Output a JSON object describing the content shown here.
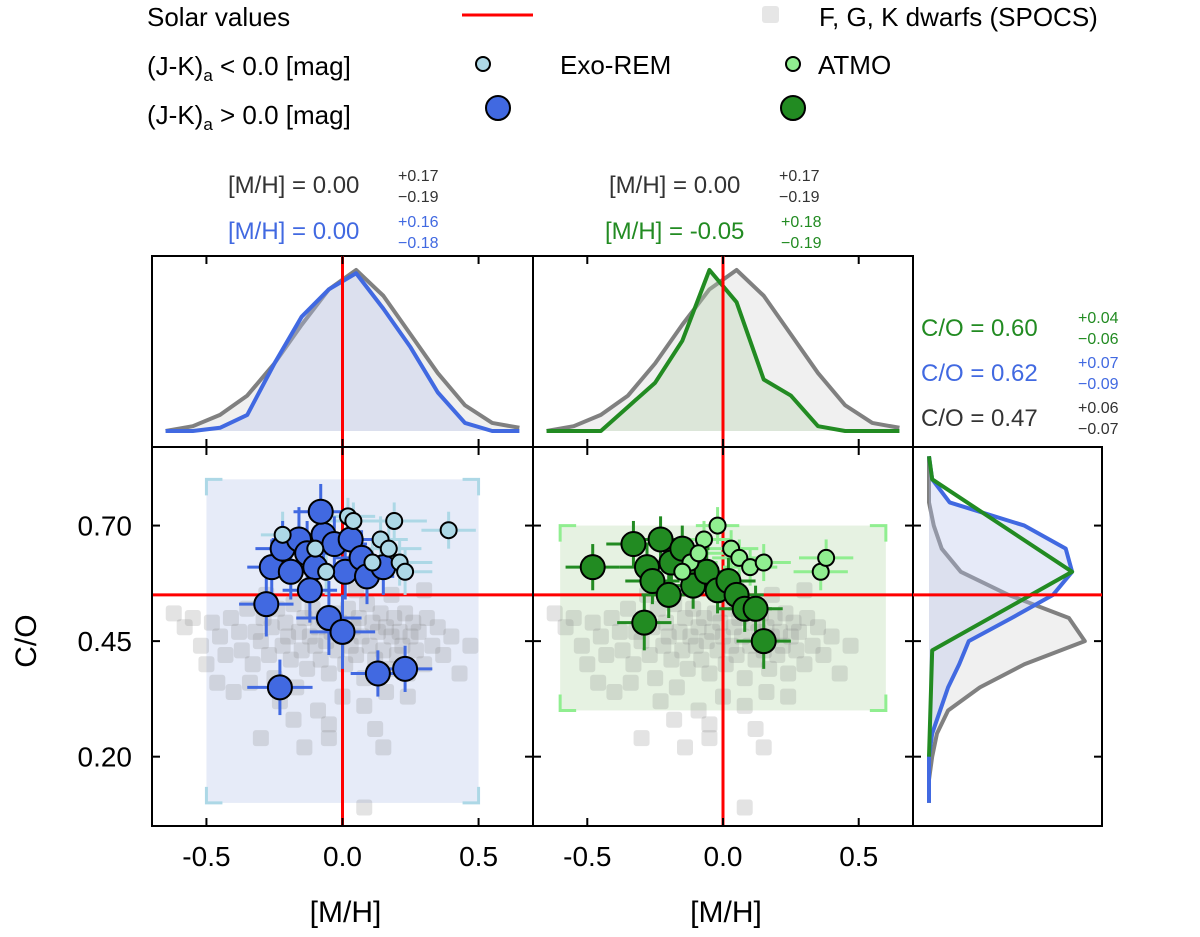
{
  "legend": {
    "solar_label": "Solar values",
    "stars_label": "F, G, K dwarfs (SPOCS)",
    "row_low": "(J-K)",
    "row_low_sub": "a",
    "row_low_rest": " < 0.0 [mag]",
    "row_high": "(J-K)",
    "row_high_sub": "a",
    "row_high_rest": " > 0.0 [mag]",
    "exorem_label": "Exo-REM",
    "atmo_label": "ATMO"
  },
  "annotations": {
    "left_stars": {
      "prefix": "[M/H] = ",
      "value": "0.00",
      "sup": "+0.17",
      "sub": "−0.19"
    },
    "left_exorem": {
      "prefix": "[M/H] = ",
      "value": "0.00",
      "sup": "+0.16",
      "sub": "−0.18"
    },
    "mid_stars": {
      "prefix": "[M/H] = ",
      "value": "0.00",
      "sup": "+0.17",
      "sub": "−0.19"
    },
    "mid_atmo": {
      "prefix": "[M/H] = ",
      "value": "-0.05",
      "sup": "+0.18",
      "sub": "−0.19"
    },
    "co_atmo": {
      "prefix": "C/O = ",
      "value": "0.60",
      "sup": "+0.04",
      "sub": "−0.06"
    },
    "co_exorem": {
      "prefix": "C/O = ",
      "value": "0.62",
      "sup": "+0.07",
      "sub": "−0.09"
    },
    "co_stars": {
      "prefix": "C/O = ",
      "value": "0.47",
      "sup": "+0.06",
      "sub": "−0.07"
    }
  },
  "chart_data": {
    "type": "scatter",
    "colors": {
      "exorem_dark": "#4169e1",
      "exorem_light": "#add8e6",
      "exorem_fill": "#e6ebf8",
      "atmo_dark": "#228b22",
      "atmo_light": "#90ee90",
      "atmo_fill": "#e6f2e2",
      "stars": "#808080",
      "solar": "#ff0000"
    },
    "solar": {
      "mh": 0.0,
      "co": 0.55
    },
    "xlabel": "[M/H]",
    "ylabel": "C/O",
    "xlim": [
      -0.7,
      0.7
    ],
    "ylim": [
      0.05,
      0.87
    ],
    "xticks": [
      -0.5,
      0.0,
      0.5
    ],
    "xtick_labels": [
      "-0.5",
      "0.0",
      "0.5"
    ],
    "yticks": [
      0.2,
      0.45,
      0.7
    ],
    "ytick_labels": [
      "0.20",
      "0.45",
      "0.70"
    ],
    "grid": false,
    "legend_position": "top",
    "grid_boxes": {
      "exorem": {
        "mh": [
          -0.5,
          0.5
        ],
        "co": [
          0.1,
          0.8
        ]
      },
      "atmo": {
        "mh": [
          -0.6,
          0.6
        ],
        "co": [
          0.3,
          0.7
        ]
      }
    },
    "mh_histograms": {
      "bins": [
        -0.65,
        -0.55,
        -0.45,
        -0.35,
        -0.25,
        -0.15,
        -0.05,
        0.05,
        0.15,
        0.25,
        0.35,
        0.45,
        0.55,
        0.65
      ],
      "stars": [
        0.0,
        0.03,
        0.1,
        0.22,
        0.42,
        0.66,
        0.88,
        1.0,
        0.84,
        0.6,
        0.36,
        0.16,
        0.05,
        0.02
      ],
      "exorem": [
        0.0,
        0.0,
        0.02,
        0.1,
        0.42,
        0.71,
        0.88,
        0.98,
        0.76,
        0.52,
        0.24,
        0.05,
        0.0,
        0.0
      ],
      "atmo": [
        0.0,
        0.0,
        0.0,
        0.15,
        0.3,
        0.56,
        1.0,
        0.8,
        0.32,
        0.22,
        0.03,
        0.0,
        0.0,
        0.0
      ]
    },
    "co_histograms": {
      "bins": [
        0.1,
        0.15,
        0.2,
        0.25,
        0.3,
        0.35,
        0.4,
        0.45,
        0.5,
        0.55,
        0.6,
        0.65,
        0.7,
        0.75,
        0.8,
        0.85
      ],
      "stars": [
        0.0,
        0.0,
        0.02,
        0.05,
        0.12,
        0.32,
        0.6,
        0.98,
        0.88,
        0.5,
        0.2,
        0.08,
        0.03,
        0.0,
        0.0,
        0.0
      ],
      "exorem": [
        0.0,
        0.0,
        0.0,
        0.02,
        0.07,
        0.12,
        0.19,
        0.25,
        0.52,
        0.78,
        0.9,
        0.86,
        0.6,
        0.13,
        0.02,
        0.0
      ],
      "atmo": [
        0.0,
        0.0,
        0.0,
        0.0,
        0.0,
        0.0,
        0.0,
        0.0,
        0.0,
        0.0,
        0.9,
        0.0,
        0.0,
        0.0,
        0.0,
        0.0
      ]
    },
    "stars": [
      [
        -0.62,
        0.51
      ],
      [
        -0.58,
        0.48
      ],
      [
        -0.55,
        0.5
      ],
      [
        -0.52,
        0.44
      ],
      [
        -0.5,
        0.4
      ],
      [
        -0.48,
        0.49
      ],
      [
        -0.46,
        0.36
      ],
      [
        -0.45,
        0.46
      ],
      [
        -0.43,
        0.42
      ],
      [
        -0.41,
        0.5
      ],
      [
        -0.4,
        0.34
      ],
      [
        -0.38,
        0.47
      ],
      [
        -0.37,
        0.43
      ],
      [
        -0.35,
        0.52
      ],
      [
        -0.33,
        0.4
      ],
      [
        -0.32,
        0.47
      ],
      [
        -0.3,
        0.45
      ],
      [
        -0.29,
        0.5
      ],
      [
        -0.27,
        0.42
      ],
      [
        -0.26,
        0.48
      ],
      [
        -0.25,
        0.37
      ],
      [
        -0.24,
        0.52
      ],
      [
        -0.22,
        0.44
      ],
      [
        -0.21,
        0.49
      ],
      [
        -0.2,
        0.46
      ],
      [
        -0.19,
        0.41
      ],
      [
        -0.18,
        0.53
      ],
      [
        -0.16,
        0.47
      ],
      [
        -0.15,
        0.43
      ],
      [
        -0.14,
        0.5
      ],
      [
        -0.13,
        0.39
      ],
      [
        -0.12,
        0.46
      ],
      [
        -0.11,
        0.52
      ],
      [
        -0.1,
        0.44
      ],
      [
        -0.09,
        0.48
      ],
      [
        -0.08,
        0.41
      ],
      [
        -0.07,
        0.5
      ],
      [
        -0.06,
        0.45
      ],
      [
        -0.05,
        0.38
      ],
      [
        -0.04,
        0.47
      ],
      [
        -0.03,
        0.51
      ],
      [
        -0.02,
        0.43
      ],
      [
        -0.01,
        0.49
      ],
      [
        0.0,
        0.46
      ],
      [
        0.01,
        0.4
      ],
      [
        0.02,
        0.52
      ],
      [
        0.03,
        0.44
      ],
      [
        0.04,
        0.48
      ],
      [
        0.05,
        0.42
      ],
      [
        0.06,
        0.5
      ],
      [
        0.07,
        0.46
      ],
      [
        0.08,
        0.37
      ],
      [
        0.09,
        0.53
      ],
      [
        0.1,
        0.44
      ],
      [
        0.11,
        0.49
      ],
      [
        0.12,
        0.41
      ],
      [
        0.13,
        0.47
      ],
      [
        0.14,
        0.51
      ],
      [
        0.15,
        0.43
      ],
      [
        0.16,
        0.48
      ],
      [
        0.17,
        0.39
      ],
      [
        0.18,
        0.46
      ],
      [
        0.19,
        0.5
      ],
      [
        0.2,
        0.42
      ],
      [
        0.21,
        0.47
      ],
      [
        0.22,
        0.44
      ],
      [
        0.23,
        0.51
      ],
      [
        0.24,
        0.38
      ],
      [
        0.25,
        0.46
      ],
      [
        0.26,
        0.49
      ],
      [
        0.27,
        0.43
      ],
      [
        0.28,
        0.47
      ],
      [
        0.3,
        0.4
      ],
      [
        0.31,
        0.5
      ],
      [
        0.33,
        0.44
      ],
      [
        0.35,
        0.48
      ],
      [
        0.37,
        0.42
      ],
      [
        0.4,
        0.46
      ],
      [
        0.43,
        0.38
      ],
      [
        0.47,
        0.44
      ],
      [
        -0.34,
        0.36
      ],
      [
        -0.23,
        0.32
      ],
      [
        -0.17,
        0.35
      ],
      [
        -0.09,
        0.3
      ],
      [
        0.0,
        0.33
      ],
      [
        0.08,
        0.31
      ],
      [
        0.16,
        0.34
      ],
      [
        0.24,
        0.33
      ],
      [
        -0.28,
        0.55
      ],
      [
        -0.12,
        0.57
      ],
      [
        0.05,
        0.56
      ],
      [
        0.18,
        0.55
      ],
      [
        0.3,
        0.56
      ],
      [
        -0.05,
        0.27
      ],
      [
        0.12,
        0.26
      ],
      [
        -0.18,
        0.28
      ],
      [
        -0.3,
        0.24
      ],
      [
        -0.05,
        0.24
      ],
      [
        0.15,
        0.22
      ],
      [
        -0.14,
        0.22
      ],
      [
        0.08,
        0.09
      ]
    ],
    "exorem_points": [
      {
        "mh": -0.22,
        "co": 0.68,
        "xe": 0.08,
        "ye": 0.05,
        "jk": "low"
      },
      {
        "mh": -0.1,
        "co": 0.65,
        "xe": 0.1,
        "ye": 0.05,
        "jk": "low"
      },
      {
        "mh": -0.06,
        "co": 0.6,
        "xe": 0.12,
        "ye": 0.05,
        "jk": "low"
      },
      {
        "mh": 0.02,
        "co": 0.72,
        "xe": 0.1,
        "ye": 0.04,
        "jk": "low"
      },
      {
        "mh": 0.04,
        "co": 0.71,
        "xe": 0.1,
        "ye": 0.04,
        "jk": "low"
      },
      {
        "mh": 0.11,
        "co": 0.62,
        "xe": 0.12,
        "ye": 0.05,
        "jk": "low"
      },
      {
        "mh": 0.14,
        "co": 0.67,
        "xe": 0.1,
        "ye": 0.05,
        "jk": "low"
      },
      {
        "mh": 0.17,
        "co": 0.65,
        "xe": 0.12,
        "ye": 0.05,
        "jk": "low"
      },
      {
        "mh": 0.19,
        "co": 0.71,
        "xe": 0.12,
        "ye": 0.04,
        "jk": "low"
      },
      {
        "mh": 0.21,
        "co": 0.62,
        "xe": 0.12,
        "ye": 0.05,
        "jk": "low"
      },
      {
        "mh": 0.23,
        "co": 0.6,
        "xe": 0.1,
        "ye": 0.05,
        "jk": "low"
      },
      {
        "mh": 0.39,
        "co": 0.69,
        "xe": 0.1,
        "ye": 0.04,
        "jk": "low"
      },
      {
        "mh": -0.26,
        "co": 0.61,
        "xe": 0.09,
        "ye": 0.06,
        "jk": "high"
      },
      {
        "mh": -0.22,
        "co": 0.65,
        "xe": 0.1,
        "ye": 0.06,
        "jk": "high"
      },
      {
        "mh": -0.19,
        "co": 0.6,
        "xe": 0.1,
        "ye": 0.06,
        "jk": "high"
      },
      {
        "mh": -0.16,
        "co": 0.67,
        "xe": 0.1,
        "ye": 0.07,
        "jk": "high"
      },
      {
        "mh": -0.13,
        "co": 0.64,
        "xe": 0.1,
        "ye": 0.07,
        "jk": "high"
      },
      {
        "mh": -0.1,
        "co": 0.61,
        "xe": 0.12,
        "ye": 0.07,
        "jk": "high"
      },
      {
        "mh": -0.07,
        "co": 0.68,
        "xe": 0.1,
        "ye": 0.06,
        "jk": "high"
      },
      {
        "mh": -0.08,
        "co": 0.73,
        "xe": 0.1,
        "ye": 0.06,
        "jk": "high"
      },
      {
        "mh": -0.03,
        "co": 0.66,
        "xe": 0.12,
        "ye": 0.06,
        "jk": "high"
      },
      {
        "mh": 0.01,
        "co": 0.6,
        "xe": 0.1,
        "ye": 0.06,
        "jk": "high"
      },
      {
        "mh": 0.03,
        "co": 0.67,
        "xe": 0.12,
        "ye": 0.06,
        "jk": "high"
      },
      {
        "mh": 0.07,
        "co": 0.63,
        "xe": 0.1,
        "ye": 0.06,
        "jk": "high"
      },
      {
        "mh": 0.09,
        "co": 0.59,
        "xe": 0.1,
        "ye": 0.06,
        "jk": "high"
      },
      {
        "mh": -0.28,
        "co": 0.53,
        "xe": 0.1,
        "ye": 0.07,
        "jk": "high"
      },
      {
        "mh": -0.12,
        "co": 0.56,
        "xe": 0.1,
        "ye": 0.07,
        "jk": "high"
      },
      {
        "mh": -0.05,
        "co": 0.5,
        "xe": 0.12,
        "ye": 0.08,
        "jk": "high"
      },
      {
        "mh": 0.0,
        "co": 0.47,
        "xe": 0.12,
        "ye": 0.08,
        "jk": "high"
      },
      {
        "mh": 0.15,
        "co": 0.61,
        "xe": 0.1,
        "ye": 0.06,
        "jk": "high"
      },
      {
        "mh": -0.23,
        "co": 0.35,
        "xe": 0.12,
        "ye": 0.06,
        "jk": "high"
      },
      {
        "mh": 0.13,
        "co": 0.38,
        "xe": 0.1,
        "ye": 0.05,
        "jk": "high"
      },
      {
        "mh": 0.23,
        "co": 0.39,
        "xe": 0.1,
        "ye": 0.05,
        "jk": "high"
      }
    ],
    "atmo_points": [
      {
        "mh": -0.02,
        "co": 0.7,
        "xe": 0.08,
        "ye": 0.04,
        "jk": "low"
      },
      {
        "mh": -0.07,
        "co": 0.67,
        "xe": 0.1,
        "ye": 0.04,
        "jk": "low"
      },
      {
        "mh": 0.03,
        "co": 0.65,
        "xe": 0.1,
        "ye": 0.04,
        "jk": "low"
      },
      {
        "mh": 0.06,
        "co": 0.63,
        "xe": 0.1,
        "ye": 0.04,
        "jk": "low"
      },
      {
        "mh": 0.1,
        "co": 0.61,
        "xe": 0.1,
        "ye": 0.04,
        "jk": "low"
      },
      {
        "mh": 0.15,
        "co": 0.62,
        "xe": 0.1,
        "ye": 0.04,
        "jk": "low"
      },
      {
        "mh": -0.12,
        "co": 0.62,
        "xe": 0.1,
        "ye": 0.04,
        "jk": "low"
      },
      {
        "mh": -0.09,
        "co": 0.64,
        "xe": 0.1,
        "ye": 0.04,
        "jk": "low"
      },
      {
        "mh": -0.15,
        "co": 0.6,
        "xe": 0.1,
        "ye": 0.04,
        "jk": "low"
      },
      {
        "mh": 0.36,
        "co": 0.6,
        "xe": 0.1,
        "ye": 0.04,
        "jk": "low"
      },
      {
        "mh": 0.38,
        "co": 0.63,
        "xe": 0.1,
        "ye": 0.04,
        "jk": "low"
      },
      {
        "mh": -0.48,
        "co": 0.61,
        "xe": 0.1,
        "ye": 0.05,
        "jk": "high"
      },
      {
        "mh": -0.33,
        "co": 0.66,
        "xe": 0.1,
        "ye": 0.05,
        "jk": "high"
      },
      {
        "mh": -0.28,
        "co": 0.61,
        "xe": 0.1,
        "ye": 0.05,
        "jk": "high"
      },
      {
        "mh": -0.23,
        "co": 0.67,
        "xe": 0.1,
        "ye": 0.05,
        "jk": "high"
      },
      {
        "mh": -0.19,
        "co": 0.62,
        "xe": 0.1,
        "ye": 0.05,
        "jk": "high"
      },
      {
        "mh": -0.15,
        "co": 0.65,
        "xe": 0.1,
        "ye": 0.05,
        "jk": "high"
      },
      {
        "mh": -0.26,
        "co": 0.58,
        "xe": 0.1,
        "ye": 0.05,
        "jk": "high"
      },
      {
        "mh": -0.2,
        "co": 0.55,
        "xe": 0.1,
        "ye": 0.05,
        "jk": "high"
      },
      {
        "mh": -0.11,
        "co": 0.57,
        "xe": 0.1,
        "ye": 0.05,
        "jk": "high"
      },
      {
        "mh": -0.06,
        "co": 0.6,
        "xe": 0.1,
        "ye": 0.05,
        "jk": "high"
      },
      {
        "mh": -0.02,
        "co": 0.56,
        "xe": 0.1,
        "ye": 0.05,
        "jk": "high"
      },
      {
        "mh": 0.02,
        "co": 0.58,
        "xe": 0.1,
        "ye": 0.05,
        "jk": "high"
      },
      {
        "mh": 0.05,
        "co": 0.55,
        "xe": 0.1,
        "ye": 0.05,
        "jk": "high"
      },
      {
        "mh": 0.08,
        "co": 0.52,
        "xe": 0.1,
        "ye": 0.05,
        "jk": "high"
      },
      {
        "mh": 0.12,
        "co": 0.52,
        "xe": 0.1,
        "ye": 0.05,
        "jk": "high"
      },
      {
        "mh": -0.29,
        "co": 0.49,
        "xe": 0.1,
        "ye": 0.06,
        "jk": "high"
      },
      {
        "mh": 0.15,
        "co": 0.45,
        "xe": 0.1,
        "ye": 0.06,
        "jk": "high"
      }
    ]
  }
}
